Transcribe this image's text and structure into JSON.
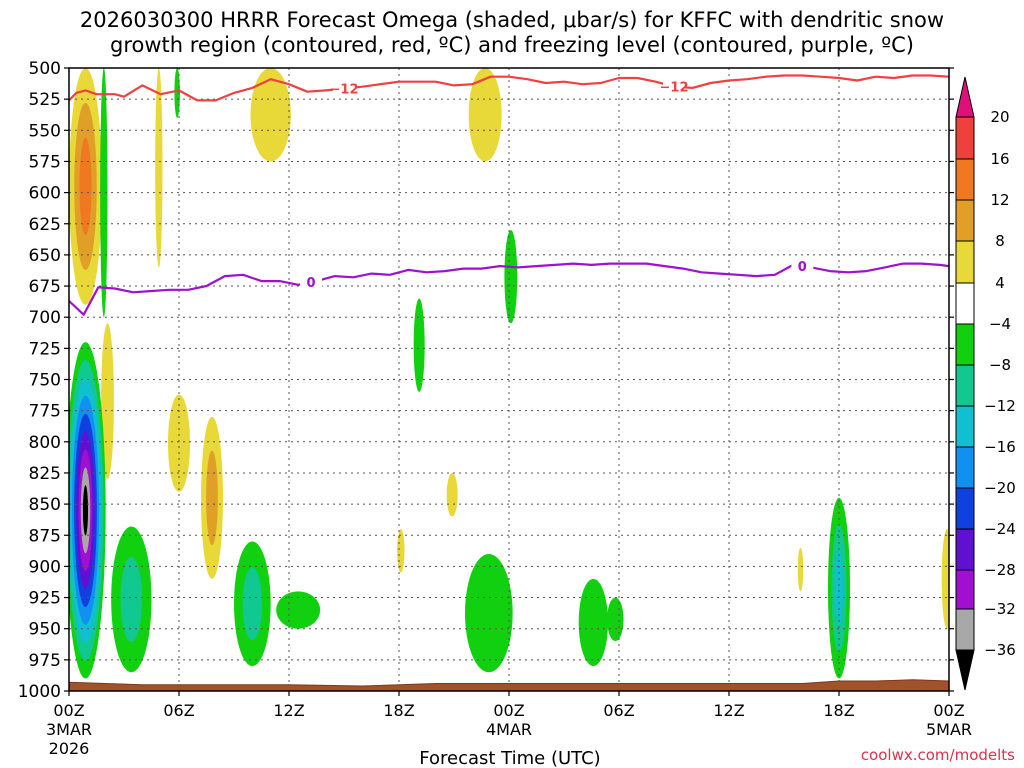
{
  "title_line1": "2026030300 HRRR Forecast Omega (shaded, μbar/s) for KFFC with dendritic snow",
  "title_line2": "growth region (contoured, red, ºC) and freezing level (contoured, purple, ºC)",
  "credit": "coolwx.com/modelts",
  "chart_data": {
    "type": "heatmap",
    "xlabel": "Forecast Time (UTC)",
    "ylabel": "",
    "x_range": [
      0,
      48
    ],
    "y_range": [
      1000,
      500
    ],
    "y_axis": "pressure (inverted, surface at bottom)",
    "grid": "dotted",
    "x_ticks": [
      {
        "label": "00Z",
        "sub1": "3MAR",
        "sub2": "2026",
        "x": 0
      },
      {
        "label": "06Z",
        "sub1": "",
        "sub2": "",
        "x": 6
      },
      {
        "label": "12Z",
        "sub1": "",
        "sub2": "",
        "x": 12
      },
      {
        "label": "18Z",
        "sub1": "",
        "sub2": "",
        "x": 18
      },
      {
        "label": "00Z",
        "sub1": "4MAR",
        "sub2": "",
        "x": 24
      },
      {
        "label": "06Z",
        "sub1": "",
        "sub2": "",
        "x": 30
      },
      {
        "label": "12Z",
        "sub1": "",
        "sub2": "",
        "x": 36
      },
      {
        "label": "18Z",
        "sub1": "",
        "sub2": "",
        "x": 42
      },
      {
        "label": "00Z",
        "sub1": "5MAR",
        "sub2": "",
        "x": 48
      }
    ],
    "y_ticks": [
      "500",
      "525",
      "550",
      "575",
      "600",
      "625",
      "650",
      "675",
      "700",
      "725",
      "750",
      "775",
      "800",
      "825",
      "850",
      "875",
      "900",
      "925",
      "950",
      "975",
      "1000"
    ],
    "colorbar": {
      "levels": [
        "20",
        "16",
        "12",
        "8",
        "4",
        "−4",
        "−8",
        "−12",
        "−16",
        "−20",
        "−24",
        "−28",
        "−32",
        "−36"
      ],
      "bands": [
        {
          "min": 20,
          "max": 99,
          "color": "#e0107a"
        },
        {
          "min": 16,
          "max": 20,
          "color": "#f0403c"
        },
        {
          "min": 12,
          "max": 16,
          "color": "#f07820"
        },
        {
          "min": 8,
          "max": 12,
          "color": "#e0a028"
        },
        {
          "min": 4,
          "max": 8,
          "color": "#e8d838"
        },
        {
          "min": -4,
          "max": 4,
          "color": "#ffffff"
        },
        {
          "min": -8,
          "max": -4,
          "color": "#10d010"
        },
        {
          "min": -12,
          "max": -8,
          "color": "#10c890"
        },
        {
          "min": -16,
          "max": -12,
          "color": "#10c0d0"
        },
        {
          "min": -20,
          "max": -16,
          "color": "#1090f0"
        },
        {
          "min": -24,
          "max": -20,
          "color": "#1040e0"
        },
        {
          "min": -28,
          "max": -24,
          "color": "#6010d0"
        },
        {
          "min": -32,
          "max": -28,
          "color": "#a010d0"
        },
        {
          "min": -36,
          "max": -32,
          "color": "#a8a8a8"
        },
        {
          "min": -99,
          "max": -36,
          "color": "#000000"
        }
      ]
    },
    "omega_features": [
      {
        "t": 0.9,
        "p_top": 500,
        "p_bot": 690,
        "hw": 0.9,
        "levels": [
          4,
          8,
          12
        ],
        "colors": [
          "#e8d838",
          "#e0a028",
          "#f07820"
        ]
      },
      {
        "t": 1.9,
        "p_top": 500,
        "p_bot": 700,
        "hw": 0.2,
        "levels": [
          -4
        ],
        "colors": [
          "#10d010"
        ]
      },
      {
        "t": 5.9,
        "p_top": 500,
        "p_bot": 540,
        "hw": 0.15,
        "levels": [
          -4
        ],
        "colors": [
          "#10d010"
        ]
      },
      {
        "t": 4.9,
        "p_top": 500,
        "p_bot": 660,
        "hw": 0.2,
        "levels": [
          4
        ],
        "colors": [
          "#e8d838"
        ]
      },
      {
        "t": 11.0,
        "p_top": 500,
        "p_bot": 575,
        "hw": 1.1,
        "levels": [
          4
        ],
        "colors": [
          "#e8d838"
        ]
      },
      {
        "t": 22.7,
        "p_top": 500,
        "p_bot": 575,
        "hw": 0.9,
        "levels": [
          4
        ],
        "colors": [
          "#e8d838"
        ]
      },
      {
        "t": 24.1,
        "p_top": 630,
        "p_bot": 705,
        "hw": 0.35,
        "levels": [
          -4
        ],
        "colors": [
          "#10d010"
        ]
      },
      {
        "t": 19.1,
        "p_top": 685,
        "p_bot": 760,
        "hw": 0.3,
        "levels": [
          -4
        ],
        "colors": [
          "#10d010"
        ]
      },
      {
        "t": 2.1,
        "p_top": 705,
        "p_bot": 830,
        "hw": 0.35,
        "levels": [
          4
        ],
        "colors": [
          "#e8d838"
        ]
      },
      {
        "t": 6.0,
        "p_top": 762,
        "p_bot": 840,
        "hw": 0.6,
        "levels": [
          4
        ],
        "colors": [
          "#e8d838"
        ]
      },
      {
        "t": 7.8,
        "p_top": 780,
        "p_bot": 910,
        "hw": 0.6,
        "levels": [
          4,
          8
        ],
        "colors": [
          "#e8d838",
          "#e0a028"
        ]
      },
      {
        "t": 20.9,
        "p_top": 825,
        "p_bot": 860,
        "hw": 0.3,
        "levels": [
          4
        ],
        "colors": [
          "#e8d838"
        ]
      },
      {
        "t": 18.1,
        "p_top": 870,
        "p_bot": 905,
        "hw": 0.2,
        "levels": [
          4
        ],
        "colors": [
          "#e8d838"
        ]
      },
      {
        "t": 39.9,
        "p_top": 885,
        "p_bot": 920,
        "hw": 0.15,
        "levels": [
          4
        ],
        "colors": [
          "#e8d838"
        ]
      },
      {
        "t": 47.9,
        "p_top": 870,
        "p_bot": 950,
        "hw": 0.3,
        "levels": [
          4
        ],
        "colors": [
          "#e8d838"
        ]
      },
      {
        "t": 0.9,
        "p_top": 720,
        "p_bot": 990,
        "hw": 1.1,
        "levels": [
          -4,
          -8,
          -12,
          -16,
          -20,
          -24,
          -28,
          -32,
          -36
        ],
        "colors": [
          "#10d010",
          "#10c890",
          "#10c0d0",
          "#1090f0",
          "#1040e0",
          "#6010d0",
          "#a010d0",
          "#a8a8a8",
          "#000000"
        ]
      },
      {
        "t": 3.4,
        "p_top": 868,
        "p_bot": 985,
        "hw": 1.1,
        "levels": [
          -4,
          -8
        ],
        "colors": [
          "#10d010",
          "#10c890"
        ]
      },
      {
        "t": 10.0,
        "p_top": 880,
        "p_bot": 980,
        "hw": 1.0,
        "levels": [
          -4,
          -8
        ],
        "colors": [
          "#10d010",
          "#10c890"
        ]
      },
      {
        "t": 12.5,
        "p_top": 920,
        "p_bot": 950,
        "hw": 1.2,
        "levels": [
          -4
        ],
        "colors": [
          "#10d010"
        ]
      },
      {
        "t": 22.9,
        "p_top": 890,
        "p_bot": 985,
        "hw": 1.3,
        "levels": [
          -4
        ],
        "colors": [
          "#10d010"
        ]
      },
      {
        "t": 28.6,
        "p_top": 910,
        "p_bot": 980,
        "hw": 0.8,
        "levels": [
          -4
        ],
        "colors": [
          "#10d010"
        ]
      },
      {
        "t": 29.8,
        "p_top": 925,
        "p_bot": 960,
        "hw": 0.45,
        "levels": [
          -4
        ],
        "colors": [
          "#10d010"
        ]
      },
      {
        "t": 42.0,
        "p_top": 845,
        "p_bot": 990,
        "hw": 0.6,
        "levels": [
          -4,
          -8,
          -12
        ],
        "colors": [
          "#10d010",
          "#10c890",
          "#10c0d0"
        ]
      }
    ],
    "contours": [
      {
        "name": "-12 ºC isotherm",
        "color": "#f04040",
        "label": "−12",
        "label_times": [
          15.0,
          33.0
        ],
        "t": [
          0,
          0.4,
          0.9,
          1.5,
          2.5,
          3.0,
          4.0,
          5.0,
          6.0,
          7.0,
          8.0,
          9.0,
          10.0,
          11.0,
          12.0,
          13.0,
          14.0,
          16.0,
          18.0,
          20.0,
          21.0,
          22.0,
          23.0,
          24.0,
          25.0,
          26.0,
          27.0,
          28.0,
          29.0,
          30.0,
          31.0,
          32.0,
          33.0,
          34.0,
          35.0,
          36.0,
          37.0,
          38.0,
          39.0,
          40.0,
          41.0,
          42.0,
          43.0,
          44.0,
          45.0,
          46.0,
          47.0,
          48.0
        ],
        "p": [
          526,
          520,
          518,
          521,
          521,
          523,
          514,
          521,
          518,
          526,
          526,
          520,
          516,
          509,
          513,
          519,
          518,
          515,
          511,
          511,
          514,
          513,
          507,
          507,
          509,
          512,
          511,
          513,
          512,
          508,
          508,
          511,
          515,
          516,
          512,
          510,
          509,
          507,
          506,
          506,
          507,
          508,
          510,
          507,
          508,
          506,
          506,
          507
        ]
      },
      {
        "name": "0 ºC freezing level",
        "color": "#a010d0",
        "label": "0",
        "label_times": [
          13.2,
          40.0
        ],
        "t": [
          0,
          0.8,
          1.6,
          2.5,
          3.5,
          4.5,
          5.5,
          6.5,
          7.5,
          8.5,
          9.5,
          10.5,
          11.5,
          12.5,
          13.5,
          14.5,
          15.5,
          16.5,
          17.5,
          18.5,
          19.5,
          20.5,
          21.5,
          22.5,
          23.5,
          24.5,
          25.5,
          26.5,
          27.5,
          28.5,
          29.5,
          30.5,
          31.5,
          32.5,
          33.5,
          34.5,
          35.5,
          36.5,
          37.5,
          38.5,
          39.5,
          40.5,
          41.5,
          42.5,
          43.5,
          44.5,
          45.5,
          46.5,
          47.5,
          48.0
        ],
        "p": [
          687,
          698,
          676,
          677,
          680,
          679,
          678,
          678,
          675,
          667,
          666,
          671,
          671,
          674,
          671,
          667,
          668,
          665,
          666,
          662,
          664,
          663,
          661,
          661,
          659,
          660,
          659,
          658,
          657,
          658,
          657,
          657,
          657,
          659,
          661,
          664,
          665,
          666,
          667,
          666,
          658,
          660,
          663,
          664,
          663,
          660,
          657,
          657,
          658,
          659
        ]
      }
    ],
    "terrain": {
      "color": "#a0522d",
      "edge": "#7a3a1a",
      "t": [
        0,
        2,
        4,
        8,
        12,
        16,
        20,
        24,
        28,
        32,
        36,
        38,
        40,
        41,
        42,
        44,
        46,
        48
      ],
      "p": [
        993,
        994,
        995,
        995,
        995,
        996,
        994,
        994,
        994,
        994,
        994,
        994,
        994,
        993,
        992,
        992,
        991,
        992
      ]
    }
  }
}
